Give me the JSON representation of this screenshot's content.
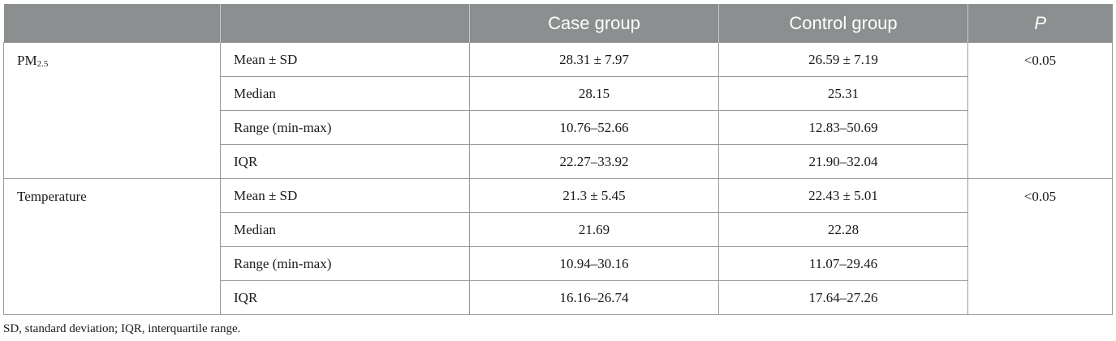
{
  "table": {
    "headers": {
      "variable": "",
      "statistic": "",
      "case": "Case group",
      "control": "Control group",
      "p": "P"
    },
    "groups": [
      {
        "variable_base": "PM",
        "variable_sub": "2.5",
        "p_value": "<0.05",
        "rows": [
          {
            "statistic": "Mean ± SD",
            "case": "28.31 ± 7.97",
            "control": "26.59 ± 7.19"
          },
          {
            "statistic": "Median",
            "case": "28.15",
            "control": "25.31"
          },
          {
            "statistic": "Range (min-max)",
            "case": "10.76–52.66",
            "control": "12.83–50.69"
          },
          {
            "statistic": "IQR",
            "case": "22.27–33.92",
            "control": "21.90–32.04"
          }
        ]
      },
      {
        "variable_base": "Temperature",
        "variable_sub": "",
        "p_value": "<0.05",
        "rows": [
          {
            "statistic": "Mean ± SD",
            "case": "21.3 ± 5.45",
            "control": "22.43 ± 5.01"
          },
          {
            "statistic": "Median",
            "case": "21.69",
            "control": "22.28"
          },
          {
            "statistic": "Range (min-max)",
            "case": "10.94–30.16",
            "control": "11.07–29.46"
          },
          {
            "statistic": "IQR",
            "case": "16.16–26.74",
            "control": "17.64–27.26"
          }
        ]
      }
    ]
  },
  "footnote": "SD, standard deviation; IQR, interquartile range.",
  "colors": {
    "header_background": "#8c8f8f",
    "header_text": "#ffffff",
    "border": "#9a9a9a"
  }
}
